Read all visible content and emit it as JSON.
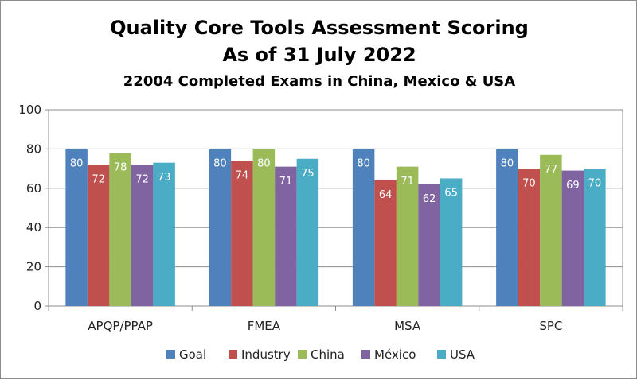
{
  "chart_data": {
    "type": "bar",
    "title": "Quality Core Tools Assessment Scoring",
    "title_line2": "As of 31 July 2022",
    "subtitle": "22004 Completed Exams in China, Mexico & USA",
    "categories": [
      "APQP/PPAP",
      "FMEA",
      "MSA",
      "SPC"
    ],
    "series": [
      {
        "name": "Goal",
        "color": "#4f81bd",
        "values": [
          80,
          80,
          80,
          80
        ]
      },
      {
        "name": "Industry",
        "color": "#c0504d",
        "values": [
          72,
          74,
          64,
          70
        ]
      },
      {
        "name": "China",
        "color": "#9bbb59",
        "values": [
          78,
          80,
          71,
          77
        ]
      },
      {
        "name": "México",
        "color": "#8064a2",
        "values": [
          72,
          71,
          62,
          69
        ]
      },
      {
        "name": "USA",
        "color": "#4bacc6",
        "values": [
          73,
          75,
          65,
          70
        ]
      }
    ],
    "ylim": [
      0,
      100
    ],
    "yticks": [
      0,
      20,
      40,
      60,
      80,
      100
    ],
    "grid": true,
    "legend": "bottom",
    "xlabel": "",
    "ylabel": ""
  }
}
